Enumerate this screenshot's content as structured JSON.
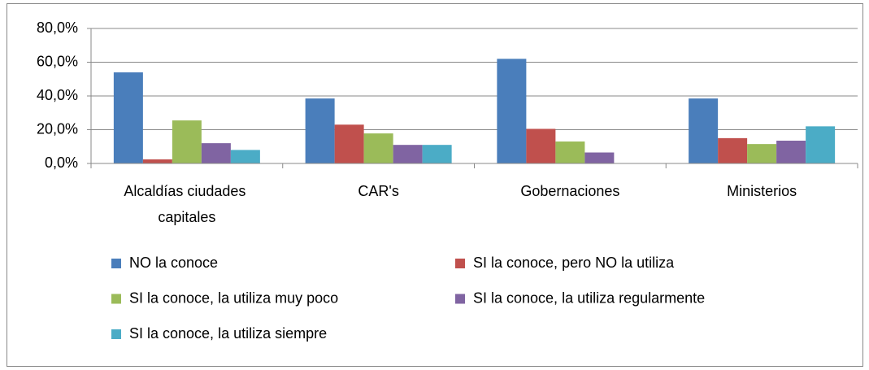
{
  "chart_data": {
    "type": "bar",
    "categories": [
      "Alcaldías ciudades capitales",
      "CAR's",
      "Gobernaciones",
      "Ministerios"
    ],
    "series": [
      {
        "name": "NO la conoce",
        "color": "#4a7ebb",
        "values": [
          54,
          38.5,
          62,
          38.5
        ]
      },
      {
        "name": "SI la conoce, pero NO la utiliza",
        "color": "#c0504d",
        "values": [
          2.4,
          23,
          20.5,
          15
        ]
      },
      {
        "name": "SI la conoce, la utiliza muy poco",
        "color": "#9bbb59",
        "values": [
          25.5,
          17.8,
          13,
          11.5
        ]
      },
      {
        "name": "SI la conoce, la utiliza regularmente",
        "color": "#8064a2",
        "values": [
          12,
          11,
          6.5,
          13.5
        ]
      },
      {
        "name": "SI la conoce, la utiliza siempre",
        "color": "#4bacc6",
        "values": [
          8,
          11,
          0,
          22
        ]
      }
    ],
    "ylim": [
      0,
      80
    ],
    "yticks": [
      {
        "value": 0,
        "label": "0,0%"
      },
      {
        "value": 20,
        "label": "20,0%"
      },
      {
        "value": 40,
        "label": "40,0%"
      },
      {
        "value": 60,
        "label": "60,0%"
      },
      {
        "value": 80,
        "label": "80,0%"
      }
    ],
    "grid": true,
    "legend": "bottom"
  }
}
